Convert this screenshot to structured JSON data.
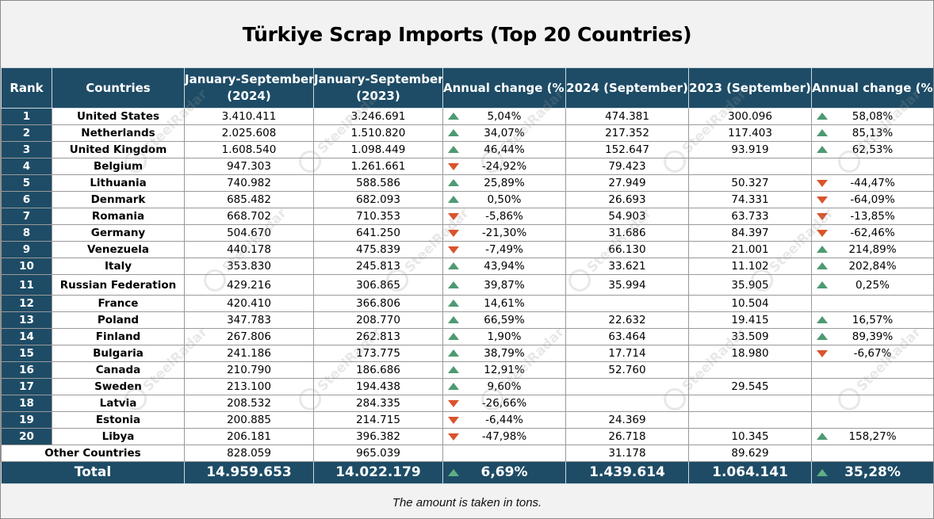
{
  "title": "Türkiye Scrap Imports (Top 20 Countries)",
  "header": {
    "rank": "Rank",
    "countries": "Countries",
    "jan_sep_2024_l1": "January-September",
    "jan_sep_2024_l2": "(2024)",
    "jan_sep_2023_l1": "January-September",
    "jan_sep_2023_l2": "(2023)",
    "annual_change_1": "Annual change (%)",
    "sep_2024": "2024 (September)",
    "sep_2023": "2023 (September)",
    "annual_change_2": "Annual change (%)"
  },
  "rows": [
    {
      "rank": "1",
      "country": "United States",
      "ytd24": "3.410.411",
      "ytd23": "3.246.691",
      "chg1": "5,04%",
      "dir1": "up",
      "m24": "474.381",
      "m23": "300.096",
      "chg2": "58,08%",
      "dir2": "up"
    },
    {
      "rank": "2",
      "country": "Netherlands",
      "ytd24": "2.025.608",
      "ytd23": "1.510.820",
      "chg1": "34,07%",
      "dir1": "up",
      "m24": "217.352",
      "m23": "117.403",
      "chg2": "85,13%",
      "dir2": "up"
    },
    {
      "rank": "3",
      "country": "United Kingdom",
      "ytd24": "1.608.540",
      "ytd23": "1.098.449",
      "chg1": "46,44%",
      "dir1": "up",
      "m24": "152.647",
      "m23": "93.919",
      "chg2": "62,53%",
      "dir2": "up"
    },
    {
      "rank": "4",
      "country": "Belgium",
      "ytd24": "947.303",
      "ytd23": "1.261.661",
      "chg1": "-24,92%",
      "dir1": "down",
      "m24": "79.423",
      "m23": "",
      "chg2": "",
      "dir2": ""
    },
    {
      "rank": "5",
      "country": "Lithuania",
      "ytd24": "740.982",
      "ytd23": "588.586",
      "chg1": "25,89%",
      "dir1": "up",
      "m24": "27.949",
      "m23": "50.327",
      "chg2": "-44,47%",
      "dir2": "down"
    },
    {
      "rank": "6",
      "country": "Denmark",
      "ytd24": "685.482",
      "ytd23": "682.093",
      "chg1": "0,50%",
      "dir1": "up",
      "m24": "26.693",
      "m23": "74.331",
      "chg2": "-64,09%",
      "dir2": "down"
    },
    {
      "rank": "7",
      "country": "Romania",
      "ytd24": "668.702",
      "ytd23": "710.353",
      "chg1": "-5,86%",
      "dir1": "down",
      "m24": "54.903",
      "m23": "63.733",
      "chg2": "-13,85%",
      "dir2": "down"
    },
    {
      "rank": "8",
      "country": "Germany",
      "ytd24": "504.670",
      "ytd23": "641.250",
      "chg1": "-21,30%",
      "dir1": "down",
      "m24": "31.686",
      "m23": "84.397",
      "chg2": "-62,46%",
      "dir2": "down"
    },
    {
      "rank": "9",
      "country": "Venezuela",
      "ytd24": "440.178",
      "ytd23": "475.839",
      "chg1": "-7,49%",
      "dir1": "down",
      "m24": "66.130",
      "m23": "21.001",
      "chg2": "214,89%",
      "dir2": "up"
    },
    {
      "rank": "10",
      "country": "Italy",
      "ytd24": "353.830",
      "ytd23": "245.813",
      "chg1": "43,94%",
      "dir1": "up",
      "m24": "33.621",
      "m23": "11.102",
      "chg2": "202,84%",
      "dir2": "up"
    },
    {
      "rank": "11",
      "country": "Russian Federation",
      "ytd24": "429.216",
      "ytd23": "306.865",
      "chg1": "39,87%",
      "dir1": "up",
      "m24": "35.994",
      "m23": "35.905",
      "chg2": "0,25%",
      "dir2": "up"
    },
    {
      "rank": "12",
      "country": "France",
      "ytd24": "420.410",
      "ytd23": "366.806",
      "chg1": "14,61%",
      "dir1": "up",
      "m24": "",
      "m23": "10.504",
      "chg2": "",
      "dir2": ""
    },
    {
      "rank": "13",
      "country": "Poland",
      "ytd24": "347.783",
      "ytd23": "208.770",
      "chg1": "66,59%",
      "dir1": "up",
      "m24": "22.632",
      "m23": "19.415",
      "chg2": "16,57%",
      "dir2": "up"
    },
    {
      "rank": "14",
      "country": "Finland",
      "ytd24": "267.806",
      "ytd23": "262.813",
      "chg1": "1,90%",
      "dir1": "up",
      "m24": "63.464",
      "m23": "33.509",
      "chg2": "89,39%",
      "dir2": "up"
    },
    {
      "rank": "15",
      "country": "Bulgaria",
      "ytd24": "241.186",
      "ytd23": "173.775",
      "chg1": "38,79%",
      "dir1": "up",
      "m24": "17.714",
      "m23": "18.980",
      "chg2": "-6,67%",
      "dir2": "down"
    },
    {
      "rank": "16",
      "country": "Canada",
      "ytd24": "210.790",
      "ytd23": "186.686",
      "chg1": "12,91%",
      "dir1": "up",
      "m24": "52.760",
      "m23": "",
      "chg2": "",
      "dir2": ""
    },
    {
      "rank": "17",
      "country": "Sweden",
      "ytd24": "213.100",
      "ytd23": "194.438",
      "chg1": "9,60%",
      "dir1": "up",
      "m24": "",
      "m23": "29.545",
      "chg2": "",
      "dir2": ""
    },
    {
      "rank": "18",
      "country": "Latvia",
      "ytd24": "208.532",
      "ytd23": "284.335",
      "chg1": "-26,66%",
      "dir1": "down",
      "m24": "",
      "m23": "",
      "chg2": "",
      "dir2": ""
    },
    {
      "rank": "19",
      "country": "Estonia",
      "ytd24": "200.885",
      "ytd23": "214.715",
      "chg1": "-6,44%",
      "dir1": "down",
      "m24": "24.369",
      "m23": "",
      "chg2": "",
      "dir2": ""
    },
    {
      "rank": "20",
      "country": "Libya",
      "ytd24": "206.181",
      "ytd23": "396.382",
      "chg1": "-47,98%",
      "dir1": "down",
      "m24": "26.718",
      "m23": "10.345",
      "chg2": "158,27%",
      "dir2": "up"
    }
  ],
  "other": {
    "label": "Other Countries",
    "ytd24": "828.059",
    "ytd23": "965.039",
    "chg1": "",
    "m24": "31.178",
    "m23": "89.629",
    "chg2": ""
  },
  "total": {
    "label": "Total",
    "ytd24": "14.959.653",
    "ytd23": "14.022.179",
    "chg1": "6,69%",
    "dir1": "up",
    "m24": "1.439.614",
    "m23": "1.064.141",
    "chg2": "35,28%",
    "dir2": "up"
  },
  "footer": "The amount is taken in tons.",
  "watermark": "SteelRadar",
  "colors": {
    "header_bg": "#1e4c66",
    "up_arrow": "#4e9a72",
    "down_arrow": "#d9542c",
    "page_bg": "#f2f2f2"
  }
}
